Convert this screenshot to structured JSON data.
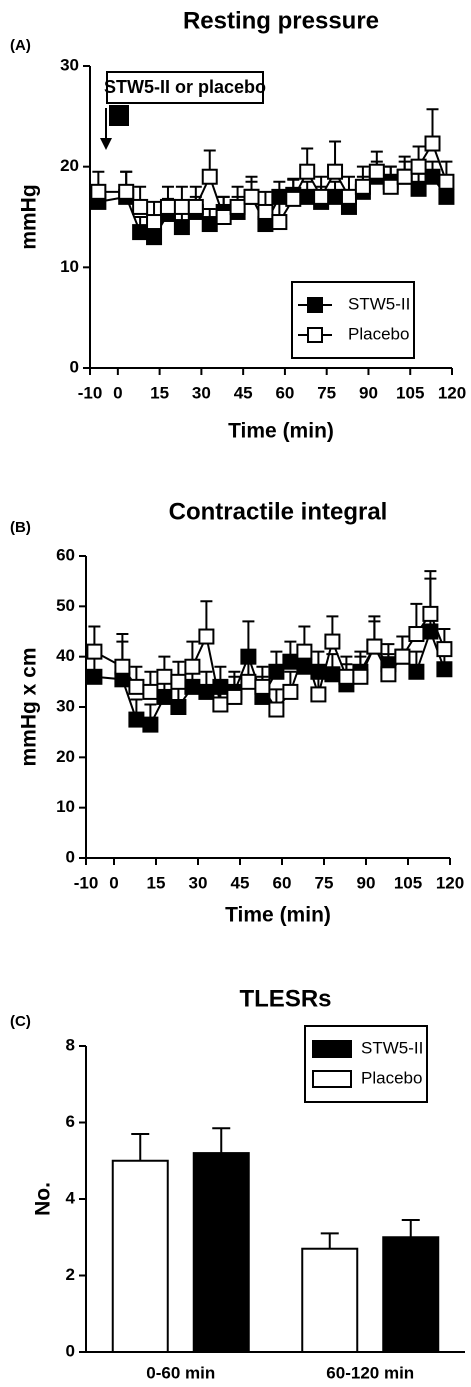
{
  "chart_data": [
    {
      "type": "line",
      "panel_label": "(A)",
      "title": "Resting pressure",
      "x_label": "Time (min)",
      "y_label": "mmHg",
      "annotation": "STW5-II or placebo",
      "x": [
        -7,
        3,
        8,
        13,
        18,
        23,
        28,
        33,
        38,
        43,
        48,
        53,
        58,
        63,
        68,
        73,
        78,
        83,
        88,
        93,
        98,
        103,
        108,
        113,
        118
      ],
      "series": [
        {
          "name": "STW5-II",
          "color": "#000000",
          "values": [
            16.5,
            17,
            13.5,
            13,
            15.3,
            14,
            15.5,
            14.3,
            15.5,
            15.5,
            17,
            14.3,
            17,
            17.2,
            17,
            16.5,
            17,
            16,
            17.5,
            19,
            18.5,
            19,
            17.8,
            19,
            17
          ],
          "errors": [
            1.5,
            2.5,
            1.5,
            1.5,
            1.5,
            1.5,
            1.5,
            1.5,
            1.5,
            1.5,
            1.5,
            1.5,
            1.5,
            1.5,
            1.5,
            1.5,
            1.5,
            1.5,
            1.5,
            1.5,
            1.5,
            1.5,
            1.5,
            1.5,
            1.5
          ]
        },
        {
          "name": "Placebo",
          "color": "#ffffff",
          "values": [
            17.5,
            17.5,
            16,
            14.5,
            16,
            16,
            16,
            19,
            15,
            16,
            17,
            15.5,
            14.5,
            16.8,
            19.5,
            17,
            19.5,
            17,
            18,
            19.5,
            18,
            19,
            20,
            22.3,
            18.5
          ],
          "errors": [
            2,
            2,
            2,
            2,
            2,
            2,
            2,
            2.6,
            2,
            2,
            2,
            2,
            2,
            2,
            2.3,
            2,
            3,
            2,
            2,
            2,
            2,
            2,
            2,
            3.4,
            2
          ]
        }
      ],
      "xlim": [
        -10,
        120
      ],
      "ylim": [
        0,
        30
      ],
      "xticks": [
        -10,
        0,
        15,
        30,
        45,
        60,
        75,
        90,
        105,
        120
      ],
      "yticks": [
        0,
        10,
        20,
        30
      ],
      "legend": "lower right"
    },
    {
      "type": "line",
      "panel_label": "(B)",
      "title": "Contractile integral",
      "x_label": "Time (min)",
      "y_label": "mmHg x cm",
      "x": [
        -7,
        3,
        8,
        13,
        18,
        23,
        28,
        33,
        38,
        43,
        48,
        53,
        58,
        63,
        68,
        73,
        78,
        83,
        88,
        93,
        98,
        103,
        108,
        113,
        118
      ],
      "series": [
        {
          "name": "STW5-II",
          "color": "#000000",
          "values": [
            36,
            35.5,
            27.5,
            26.5,
            32,
            30,
            34,
            33,
            34,
            33,
            40,
            32,
            37,
            39,
            38,
            37,
            36.5,
            34.5,
            37,
            42,
            38.5,
            40,
            37,
            45,
            37.5
          ],
          "errors": [
            4,
            9,
            4,
            4,
            4,
            4,
            4,
            4,
            4,
            4,
            7,
            4,
            4,
            4,
            4,
            4,
            4,
            4,
            4,
            6,
            4,
            4,
            4,
            12,
            4
          ]
        },
        {
          "name": "Placebo",
          "color": "#ffffff",
          "values": [
            41,
            38,
            34,
            33,
            36,
            35,
            38,
            44,
            30.5,
            32,
            35,
            34,
            29.5,
            33,
            41,
            32.5,
            43,
            36,
            36,
            42,
            36.5,
            40,
            44.5,
            48.5,
            41.5
          ],
          "errors": [
            5,
            5,
            4,
            4,
            4,
            4,
            5,
            7,
            4,
            4,
            4,
            4,
            4,
            4,
            5,
            4,
            5,
            4,
            4,
            5,
            4,
            4,
            6,
            7,
            4
          ]
        }
      ],
      "xlim": [
        -10,
        120
      ],
      "ylim": [
        0,
        60
      ],
      "xticks": [
        -10,
        0,
        15,
        30,
        45,
        60,
        75,
        90,
        105,
        120
      ],
      "yticks": [
        0,
        10,
        20,
        30,
        40,
        50,
        60
      ]
    },
    {
      "type": "bar",
      "panel_label": "(C)",
      "title": "TLESRs",
      "y_label": "No.",
      "categories": [
        "0-60 min",
        "60-120 min"
      ],
      "series": [
        {
          "name": "STW5-II",
          "color": "#000000",
          "values": [
            5.2,
            3.0
          ],
          "errors": [
            0.65,
            0.45
          ]
        },
        {
          "name": "Placebo",
          "color": "#ffffff",
          "values": [
            5.0,
            2.7
          ],
          "errors": [
            0.7,
            0.4
          ]
        }
      ],
      "ylim": [
        0,
        8
      ],
      "yticks": [
        0,
        2,
        4,
        6,
        8
      ],
      "legend": "upper right"
    }
  ]
}
